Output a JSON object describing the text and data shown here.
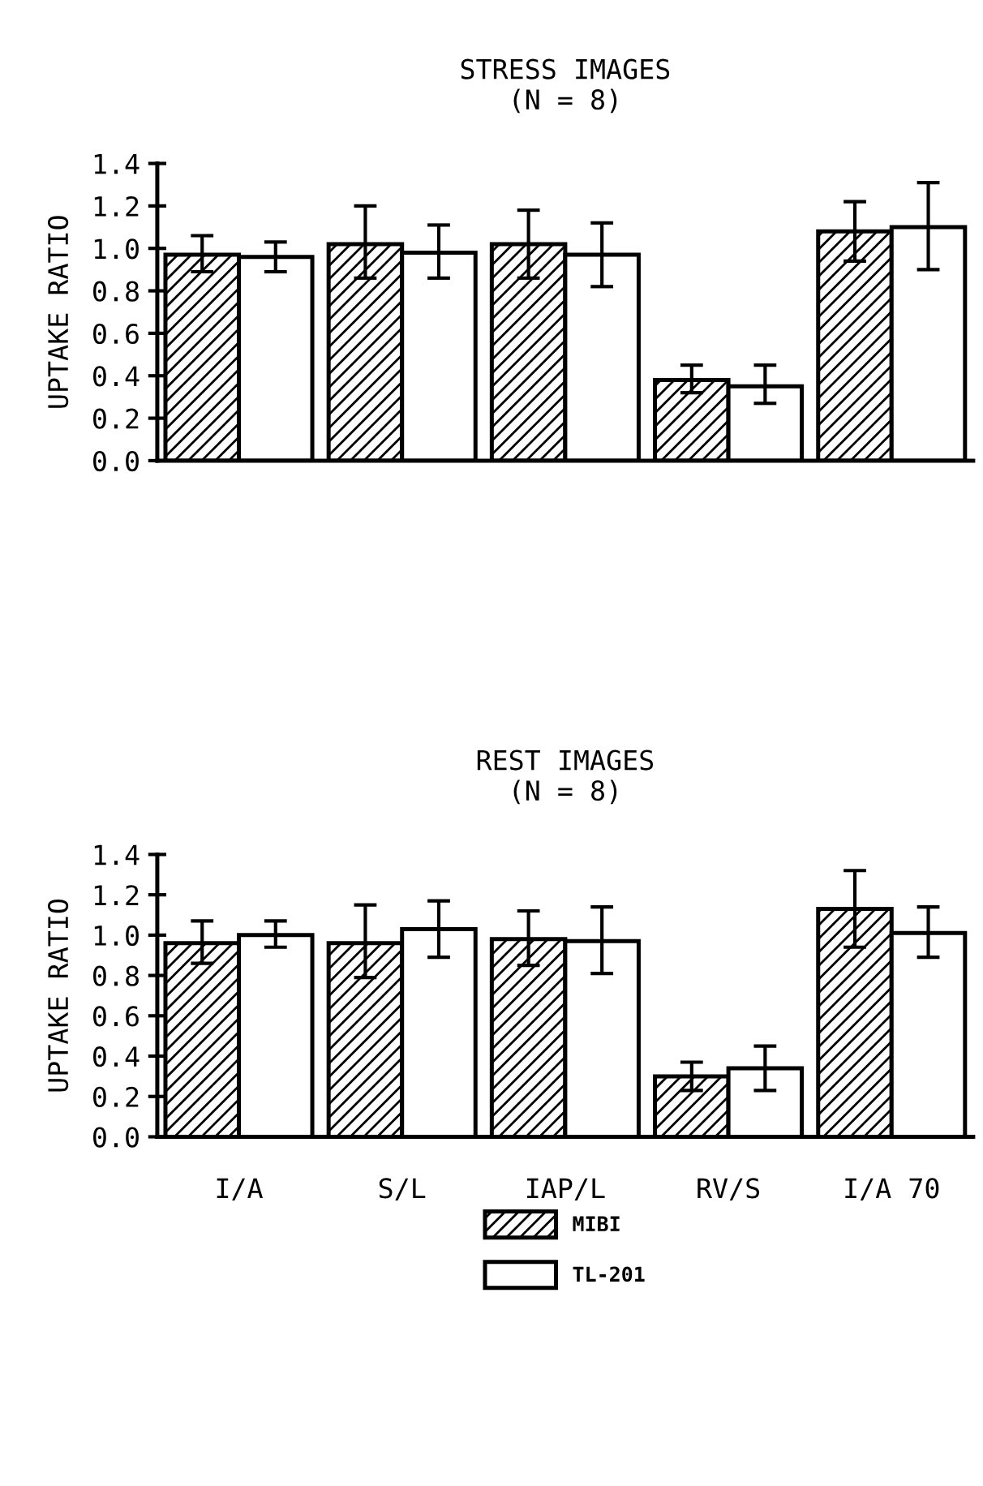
{
  "chart_data": [
    {
      "type": "bar",
      "title": "STRESS IMAGES\n(N = 8)",
      "ylabel": "UPTAKE RATIO",
      "categories": [
        null,
        null,
        null,
        null,
        null
      ],
      "ylim": [
        0,
        1.4
      ],
      "yticks": [
        {
          "value": 0,
          "label": "0.0"
        },
        {
          "value": 0.2,
          "label": "0.2"
        },
        {
          "value": 0.4,
          "label": "0.4"
        },
        {
          "value": 0.6,
          "label": "0.6"
        },
        {
          "value": 0.8,
          "label": "0.8"
        },
        {
          "value": 1.0,
          "label": "1.0"
        },
        {
          "value": 1.2,
          "label": "1.2"
        },
        {
          "value": 1.4,
          "label": "1.4"
        }
      ],
      "grid": false,
      "series": [
        {
          "color": "#000000",
          "values": [
            0.97,
            1.02,
            1.02,
            0.38,
            1.08
          ],
          "errors": [
            [
              0.89,
              1.06
            ],
            [
              0.86,
              1.2
            ],
            [
              0.86,
              1.18
            ],
            [
              0.32,
              0.45
            ],
            [
              0.94,
              1.22
            ]
          ]
        },
        {
          "color": "#ffffff",
          "values": [
            0.96,
            0.98,
            0.97,
            0.35,
            1.1
          ],
          "errors": [
            [
              0.89,
              1.03
            ],
            [
              0.86,
              1.11
            ],
            [
              0.82,
              1.12
            ],
            [
              0.27,
              0.45
            ],
            [
              0.9,
              1.31
            ]
          ]
        }
      ]
    },
    {
      "type": "bar",
      "title": "REST IMAGES\n(N = 8)",
      "ylabel": "UPTAKE RATIO",
      "categories": [
        "I/A",
        "S/L",
        "IAP/L",
        "RV/S",
        "I/A 70"
      ],
      "ylim": [
        0,
        1.4
      ],
      "yticks": [
        {
          "value": 0,
          "label": "0.0"
        },
        {
          "value": 0.2,
          "label": "0.2"
        },
        {
          "value": 0.4,
          "label": "0.4"
        },
        {
          "value": 0.6,
          "label": "0.6"
        },
        {
          "value": 0.8,
          "label": "0.8"
        },
        {
          "value": 1.0,
          "label": "1.0"
        },
        {
          "value": 1.2,
          "label": "1.2"
        },
        {
          "value": 1.4,
          "label": "1.4"
        }
      ],
      "grid": false,
      "legend": "bottom",
      "series": [
        {
          "name": "MIBI",
          "color": "#000000",
          "values": [
            0.96,
            0.96,
            0.98,
            0.3,
            1.13
          ],
          "errors": [
            [
              0.86,
              1.07
            ],
            [
              0.79,
              1.15
            ],
            [
              0.85,
              1.12
            ],
            [
              0.23,
              0.37
            ],
            [
              0.94,
              1.32
            ]
          ]
        },
        {
          "name": "TL-201",
          "color": "#ffffff",
          "values": [
            1.0,
            1.03,
            0.97,
            0.34,
            1.01
          ],
          "errors": [
            [
              0.94,
              1.07
            ],
            [
              0.89,
              1.17
            ],
            [
              0.81,
              1.14
            ],
            [
              0.23,
              0.45
            ],
            [
              0.89,
              1.14
            ]
          ]
        }
      ]
    }
  ]
}
